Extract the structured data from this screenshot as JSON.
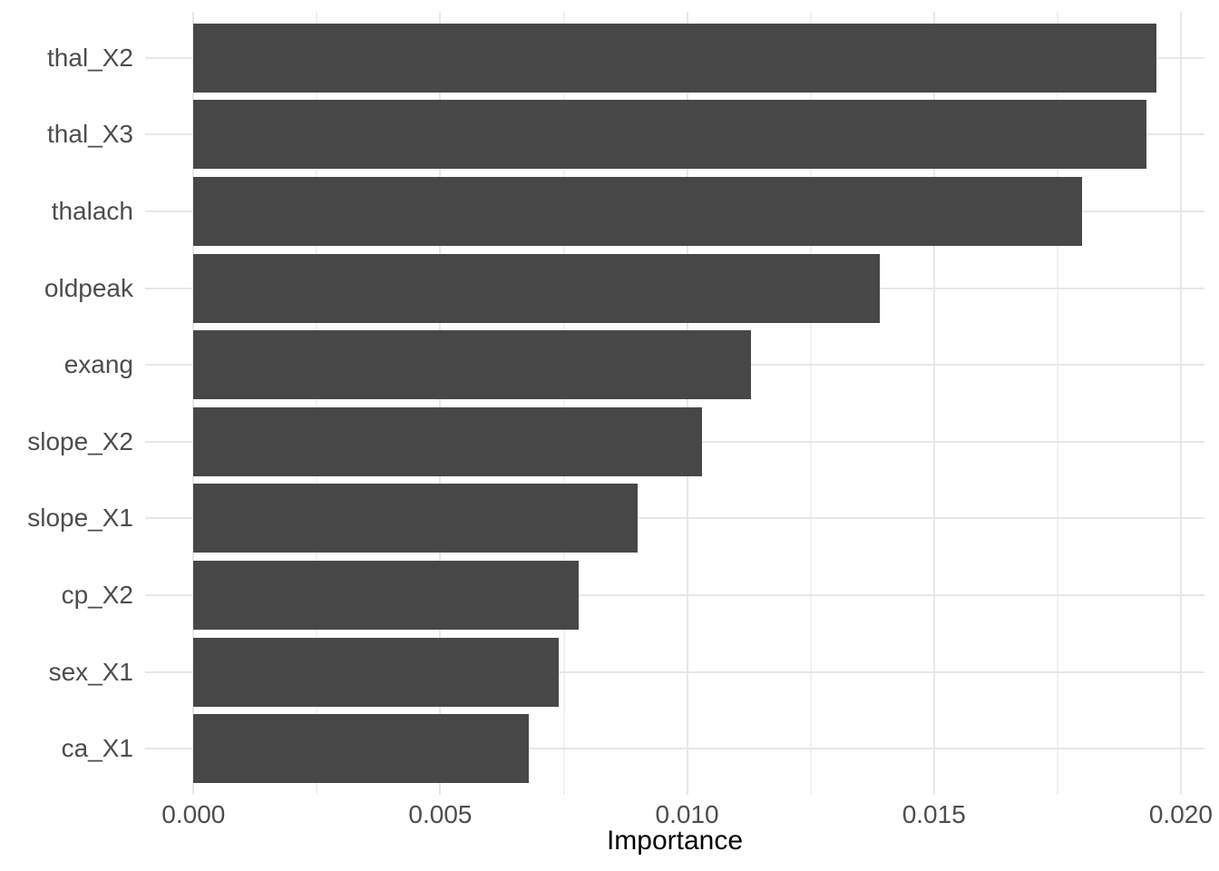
{
  "chart_data": {
    "type": "bar",
    "orientation": "horizontal",
    "title": "",
    "xlabel": "Importance",
    "ylabel": "",
    "categories": [
      "thal_X2",
      "thal_X3",
      "thalach",
      "oldpeak",
      "exang",
      "slope_X2",
      "slope_X1",
      "cp_X2",
      "sex_X1",
      "ca_X1"
    ],
    "values": [
      0.0195,
      0.0193,
      0.018,
      0.0139,
      0.0113,
      0.0103,
      0.009,
      0.0078,
      0.0074,
      0.0068
    ],
    "x_tick_values": [
      0.0,
      0.005,
      0.01,
      0.015,
      0.02
    ],
    "x_tick_labels": [
      "0.000",
      "0.005",
      "0.010",
      "0.015",
      "0.020"
    ],
    "x_minor_tick_values": [
      0.0025,
      0.0075,
      0.0125,
      0.0175
    ],
    "x_domain": [
      -0.00098,
      0.02048
    ],
    "bar_width_ratio": 0.9,
    "grid": true,
    "legend": "none",
    "colors": {
      "bar": "#474747",
      "grid_major": "#e7e7e7",
      "grid_minor": "#f1f1f1",
      "axis_text": "#4d4d4d",
      "axis_title": "#000000",
      "background": "#ffffff"
    }
  }
}
